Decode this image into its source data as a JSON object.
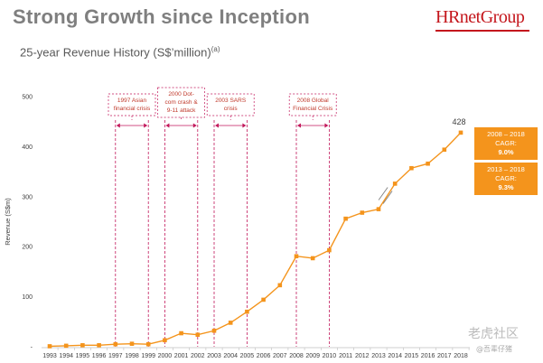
{
  "header": {
    "title": "Strong Growth since Inception",
    "logo_text": "HRnetGroup",
    "subtitle": "25-year Revenue History (S$’million)",
    "subtitle_note": "(a)"
  },
  "cagr_boxes": [
    {
      "period": "2008 – 2018",
      "label": "CAGR:",
      "value": "9.0%"
    },
    {
      "period": "2013 – 2018",
      "label": "CAGR:",
      "value": "9.3%"
    }
  ],
  "watermark": {
    "main": "老虎社区",
    "sub": "@吾辈仔猪"
  },
  "colors": {
    "series": "#f4941c",
    "crisis": "#c2185b",
    "cagr_box": "#f4941c",
    "logo": "#c4161c"
  },
  "chart_data": {
    "type": "line",
    "ylabel": "Revenue (S$m)",
    "xlabel": "",
    "ylim": [
      0,
      500
    ],
    "yticks": [
      0,
      100,
      200,
      300,
      400,
      500
    ],
    "ytick_labels": [
      "-",
      "100",
      "200",
      "300",
      "400",
      "500"
    ],
    "categories": [
      "1993",
      "1994",
      "1995",
      "1996",
      "1997",
      "1998",
      "1999",
      "2000",
      "2001",
      "2002",
      "2003",
      "2004",
      "2005",
      "2006",
      "2007",
      "2008",
      "2009",
      "2010",
      "2011",
      "2012",
      "2013",
      "2014",
      "2015",
      "2016",
      "2017",
      "2018"
    ],
    "series": [
      {
        "values": [
          1,
          2,
          3,
          3,
          5,
          6,
          5,
          13,
          27,
          24,
          32,
          48,
          70,
          94,
          123,
          181,
          177,
          193,
          256,
          268,
          275,
          326,
          357,
          366,
          394,
          428
        ]
      }
    ],
    "last_value_label": "428",
    "axis_break_after": "2013",
    "crisis_annotations": [
      {
        "label": "1997 Asian financial crisis",
        "lines": [
          "1997 Asian",
          "financial crisis"
        ],
        "start": "1997",
        "end": "1999"
      },
      {
        "label": "2000 Dot-com crash & 9-11 attack",
        "lines": [
          "2000 Dot-",
          "com crash &",
          "9-11 attack"
        ],
        "start": "2000",
        "end": "2002"
      },
      {
        "label": "2003 SARS crisis",
        "lines": [
          "2003 SARS",
          "crisis"
        ],
        "start": "2003",
        "end": "2005"
      },
      {
        "label": "2008 Global Financial Crisis",
        "lines": [
          "2008 Global",
          "Financial Crisis"
        ],
        "start": "2008",
        "end": "2010"
      }
    ]
  }
}
